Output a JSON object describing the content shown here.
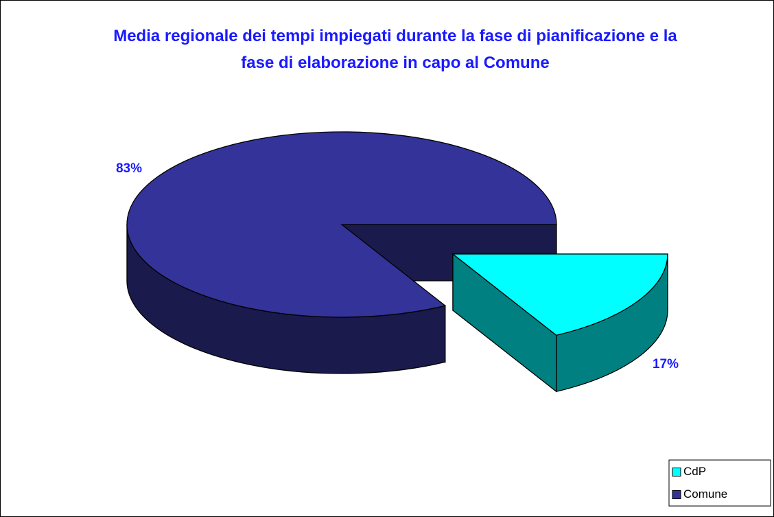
{
  "chart_data": {
    "type": "pie3d",
    "title": "Media regionale dei tempi impiegati durante la fase di pianificazione e la fase di elaborazione in capo al Comune",
    "categories": [
      "CdP",
      "Comune"
    ],
    "values": [
      17,
      83
    ],
    "value_labels": [
      "17%",
      "83%"
    ],
    "colors": [
      "#00ffff",
      "#333399"
    ],
    "legend": "bottom-right"
  }
}
